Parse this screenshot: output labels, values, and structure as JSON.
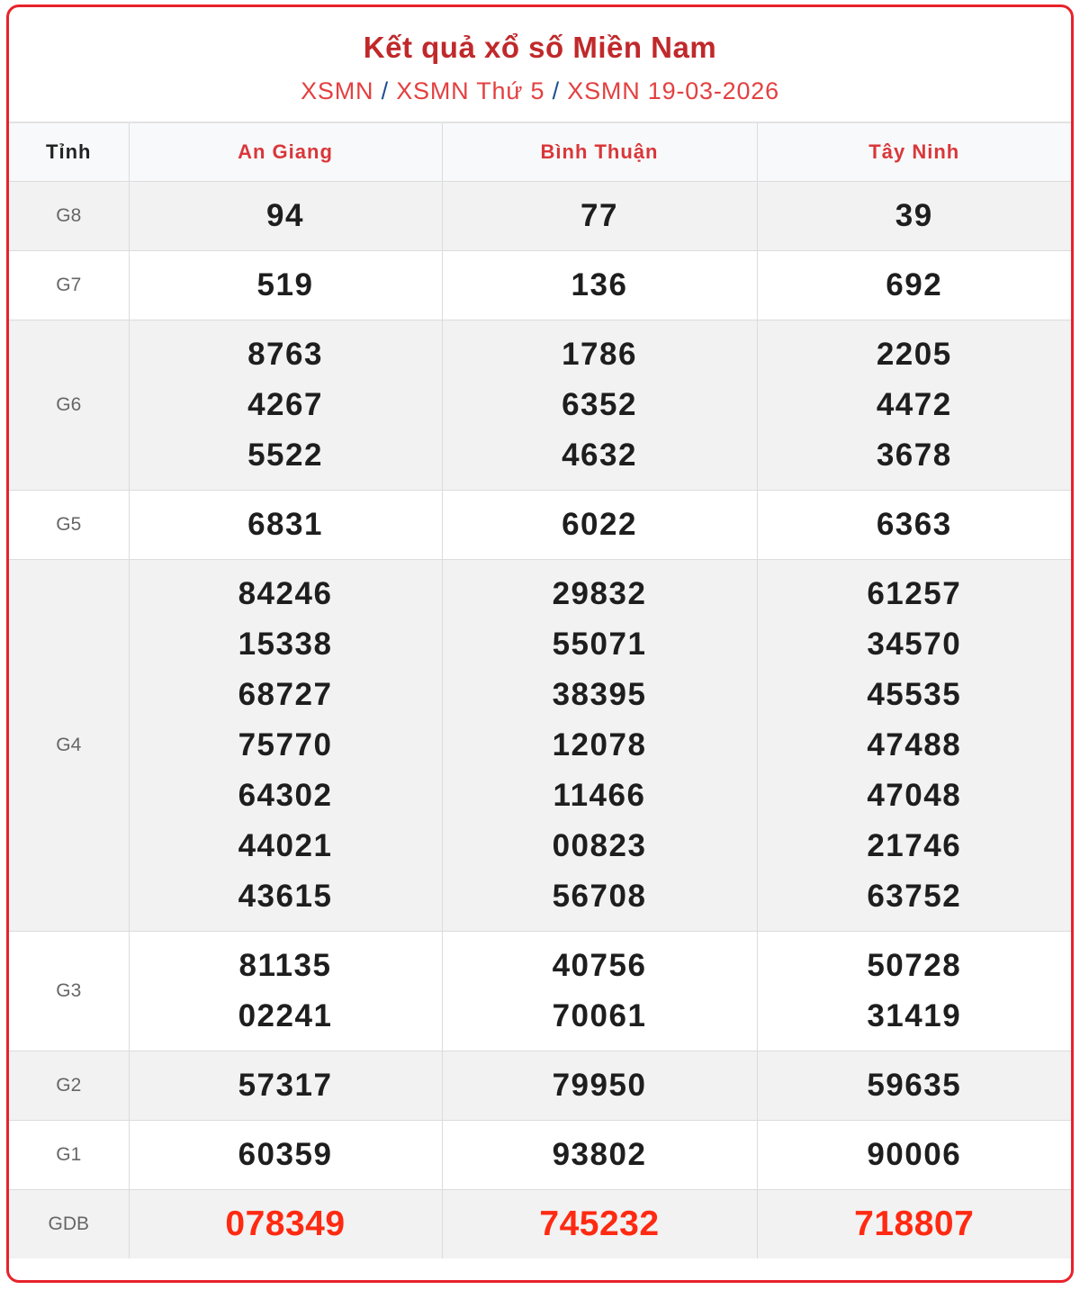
{
  "header": {
    "title": "Kết quả xổ số Miền Nam",
    "breadcrumb": [
      "XSMN",
      "XSMN Thứ 5",
      "XSMN 19-03-2026"
    ],
    "separator": "/"
  },
  "table": {
    "first_col_header": "Tỉnh",
    "provinces": [
      "An Giang",
      "Bình Thuận",
      "Tây Ninh"
    ],
    "rows": [
      {
        "prize": "G8",
        "values": [
          [
            "94"
          ],
          [
            "77"
          ],
          [
            "39"
          ]
        ]
      },
      {
        "prize": "G7",
        "values": [
          [
            "519"
          ],
          [
            "136"
          ],
          [
            "692"
          ]
        ]
      },
      {
        "prize": "G6",
        "values": [
          [
            "8763",
            "4267",
            "5522"
          ],
          [
            "1786",
            "6352",
            "4632"
          ],
          [
            "2205",
            "4472",
            "3678"
          ]
        ]
      },
      {
        "prize": "G5",
        "values": [
          [
            "6831"
          ],
          [
            "6022"
          ],
          [
            "6363"
          ]
        ]
      },
      {
        "prize": "G4",
        "values": [
          [
            "84246",
            "15338",
            "68727",
            "75770",
            "64302",
            "44021",
            "43615"
          ],
          [
            "29832",
            "55071",
            "38395",
            "12078",
            "11466",
            "00823",
            "56708"
          ],
          [
            "61257",
            "34570",
            "45535",
            "47488",
            "47048",
            "21746",
            "63752"
          ]
        ]
      },
      {
        "prize": "G3",
        "values": [
          [
            "81135",
            "02241"
          ],
          [
            "40756",
            "70061"
          ],
          [
            "50728",
            "31419"
          ]
        ]
      },
      {
        "prize": "G2",
        "values": [
          [
            "57317"
          ],
          [
            "79950"
          ],
          [
            "59635"
          ]
        ]
      },
      {
        "prize": "G1",
        "values": [
          [
            "60359"
          ],
          [
            "93802"
          ],
          [
            "90006"
          ]
        ]
      },
      {
        "prize": "GDB",
        "values": [
          [
            "078349"
          ],
          [
            "745232"
          ],
          [
            "718807"
          ]
        ]
      }
    ]
  },
  "colors": {
    "border": "#e8222a",
    "title": "#c0292b",
    "special_prize": "#ff2a12"
  }
}
